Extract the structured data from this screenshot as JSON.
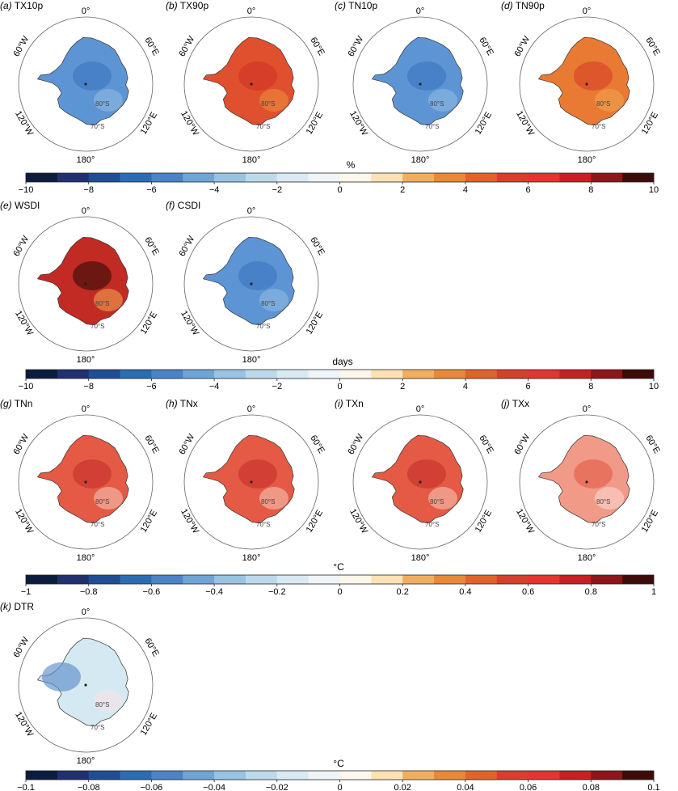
{
  "map_labels": {
    "top": "0°",
    "bottom": "180°",
    "left_upper": "60°W",
    "right_upper": "60°E",
    "left_lower": "120°W",
    "right_lower": "120°E",
    "lat_inner": "80°S",
    "lat_outer": "70°S"
  },
  "panels": [
    {
      "letter": "(a)",
      "name": "TX10p",
      "scheme": "blue"
    },
    {
      "letter": "(b)",
      "name": "TX90p",
      "scheme": "red"
    },
    {
      "letter": "(c)",
      "name": "TN10p",
      "scheme": "blue"
    },
    {
      "letter": "(d)",
      "name": "TN90p",
      "scheme": "orange"
    },
    {
      "letter": "(e)",
      "name": "WSDI",
      "scheme": "darkred"
    },
    {
      "letter": "(f)",
      "name": "CSDI",
      "scheme": "blue"
    },
    {
      "letter": "(g)",
      "name": "TNn",
      "scheme": "lightred"
    },
    {
      "letter": "(h)",
      "name": "TNx",
      "scheme": "lightred"
    },
    {
      "letter": "(i)",
      "name": "TXn",
      "scheme": "lightred"
    },
    {
      "letter": "(j)",
      "name": "TXx",
      "scheme": "palered"
    },
    {
      "letter": "(k)",
      "name": "DTR",
      "scheme": "pale"
    }
  ],
  "colorbars": [
    {
      "unit": "%",
      "ticks": [
        "−10",
        "−8",
        "−6",
        "−4",
        "−2",
        "0",
        "2",
        "4",
        "6",
        "8",
        "10"
      ]
    },
    {
      "unit": "days",
      "ticks": [
        "−10",
        "−8",
        "−6",
        "−4",
        "−2",
        "0",
        "2",
        "4",
        "6",
        "8",
        "10"
      ]
    },
    {
      "unit": "°C",
      "ticks": [
        "−1",
        "−0.8",
        "−0.6",
        "−0.4",
        "−0.2",
        "0",
        "0.2",
        "0.4",
        "0.6",
        "0.8",
        "1"
      ]
    },
    {
      "unit": "°C",
      "ticks": [
        "−0.1",
        "−0.08",
        "−0.06",
        "−0.04",
        "−0.02",
        "0",
        "0.02",
        "0.04",
        "0.06",
        "0.08",
        "0.1"
      ]
    }
  ],
  "colorbar_colors": [
    "#0b1c3f",
    "#21306f",
    "#1f4e96",
    "#2a6db5",
    "#4a83c7",
    "#6ea5d6",
    "#98c3e3",
    "#bcdaec",
    "#d9eaf3",
    "#eef4f7",
    "#fdf6ea",
    "#fbe1b4",
    "#f2ae5f",
    "#e98937",
    "#e0642a",
    "#d6402a",
    "#e33430",
    "#c81f22",
    "#8e1518",
    "#3d0c09"
  ],
  "scheme_colors": {
    "blue": {
      "land": "#5d95d4",
      "dark": "#3e77c2",
      "light": "#8fb9e3"
    },
    "red": {
      "land": "#e0502e",
      "dark": "#d23426",
      "light": "#ec8a3c"
    },
    "orange": {
      "land": "#e87a33",
      "dark": "#d9452a",
      "light": "#f0a24e"
    },
    "darkred": {
      "land": "#c22b24",
      "dark": "#3d0c09",
      "light": "#f0a24e"
    },
    "lightred": {
      "land": "#e45a45",
      "dark": "#c8322c",
      "light": "#f6c1b3"
    },
    "palered": {
      "land": "#f09a87",
      "dark": "#e4604b",
      "light": "#fbd9d0"
    },
    "pale": {
      "land": "#d4e9f1",
      "dark": "#5c8fcb",
      "light": "#f6e3e6"
    }
  }
}
